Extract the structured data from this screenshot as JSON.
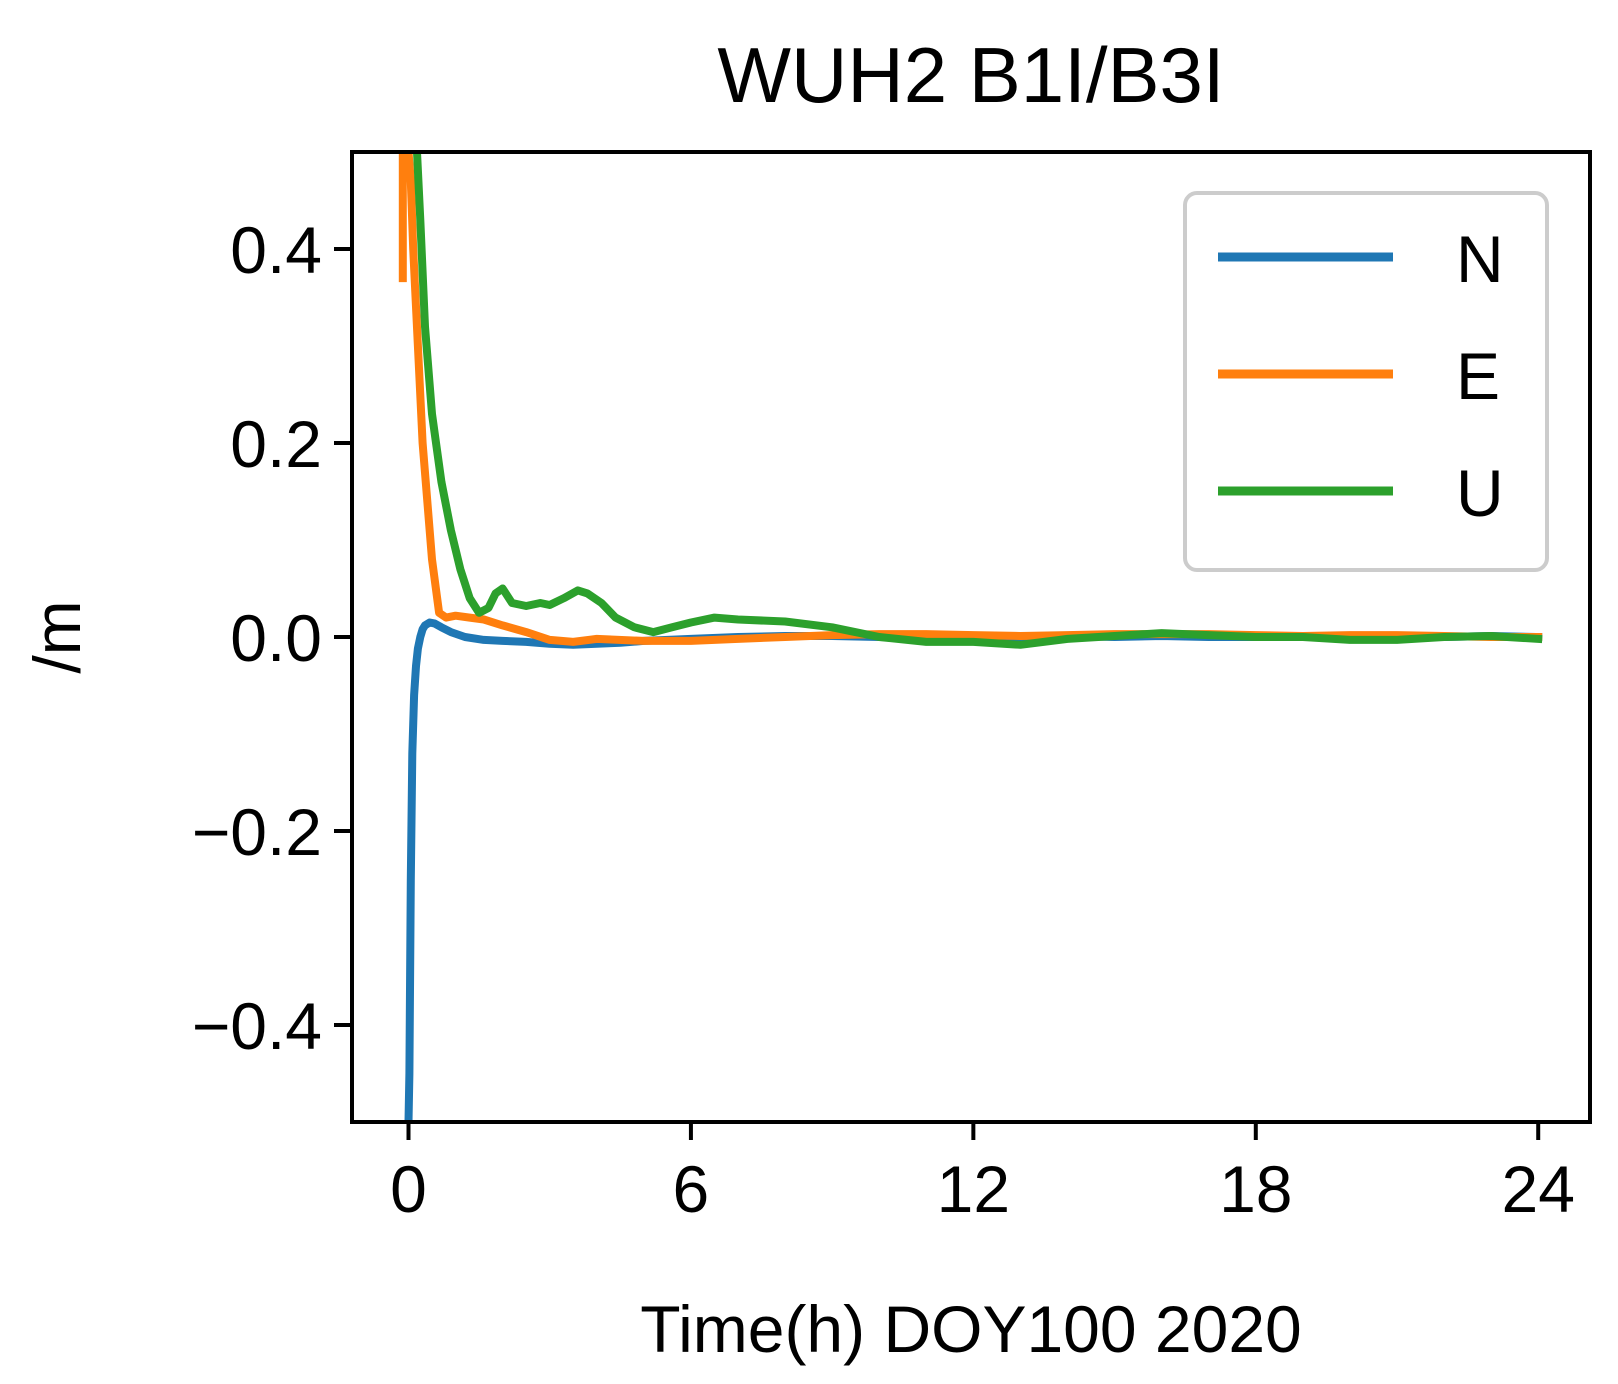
{
  "chart_data": {
    "type": "line",
    "title": "WUH2 B1I/B3I",
    "xlabel": "Time(h) DOY100 2020",
    "ylabel": "/m",
    "xlim": [
      -1.2,
      25.1
    ],
    "ylim": [
      -0.5,
      0.5
    ],
    "xticks": [
      0,
      6,
      12,
      18,
      24
    ],
    "xtick_labels": [
      "0",
      "6",
      "12",
      "18",
      "24"
    ],
    "yticks": [
      -0.4,
      -0.2,
      0.0,
      0.2,
      0.4
    ],
    "ytick_labels": [
      "−0.4",
      "−0.2",
      "0.0",
      "0.2",
      "0.4"
    ],
    "grid": false,
    "legend_position": "top-right",
    "series": [
      {
        "name": "N",
        "color": "#1f77b4",
        "x": [
          0.0,
          0.02,
          0.05,
          0.08,
          0.12,
          0.16,
          0.2,
          0.25,
          0.3,
          0.35,
          0.45,
          0.55,
          0.7,
          0.9,
          1.2,
          1.6,
          2.0,
          2.5,
          3.0,
          3.5,
          4.0,
          4.5,
          5.0,
          6.0,
          7.0,
          8.0,
          9.0,
          10.0,
          11.0,
          12.0,
          13.0,
          14.0,
          15.0,
          16.0,
          17.0,
          18.0,
          19.0,
          20.0,
          21.0,
          22.0,
          23.0,
          24.0
        ],
        "values": [
          -0.5,
          -0.45,
          -0.25,
          -0.12,
          -0.06,
          -0.03,
          -0.012,
          0.0,
          0.008,
          0.012,
          0.015,
          0.014,
          0.01,
          0.005,
          0.0,
          -0.003,
          -0.004,
          -0.005,
          -0.007,
          -0.008,
          -0.007,
          -0.006,
          -0.004,
          -0.002,
          0.0,
          0.001,
          0.001,
          0.0,
          -0.001,
          -0.001,
          0.0,
          0.001,
          0.0,
          0.001,
          0.0,
          0.0,
          0.001,
          0.0,
          0.0,
          0.0,
          0.001,
          0.0
        ]
      },
      {
        "name": "E",
        "color": "#ff7f0e",
        "x": [
          -0.12,
          -0.12,
          0.0,
          0.05,
          0.1,
          0.2,
          0.3,
          0.5,
          0.65,
          0.8,
          1.0,
          1.3,
          1.6,
          2.0,
          2.5,
          3.0,
          3.5,
          4.0,
          5.0,
          6.0,
          7.0,
          8.0,
          9.0,
          10.0,
          11.0,
          12.0,
          13.0,
          14.0,
          15.0,
          16.0,
          17.0,
          18.0,
          19.0,
          20.0,
          21.0,
          22.0,
          23.0,
          24.0
        ],
        "values": [
          0.37,
          0.5,
          0.5,
          0.47,
          0.4,
          0.3,
          0.2,
          0.08,
          0.025,
          0.02,
          0.022,
          0.02,
          0.018,
          0.012,
          0.005,
          -0.003,
          -0.005,
          -0.002,
          -0.004,
          -0.004,
          -0.002,
          0.0,
          0.002,
          0.003,
          0.003,
          0.002,
          0.001,
          0.002,
          0.003,
          0.003,
          0.003,
          0.002,
          0.001,
          0.002,
          0.002,
          0.001,
          0.0,
          0.0
        ]
      },
      {
        "name": "U",
        "color": "#2ca02c",
        "x": [
          0.18,
          0.25,
          0.35,
          0.5,
          0.7,
          0.9,
          1.1,
          1.3,
          1.5,
          1.7,
          1.85,
          2.0,
          2.2,
          2.5,
          2.8,
          3.0,
          3.3,
          3.6,
          3.8,
          4.1,
          4.4,
          4.8,
          5.2,
          5.6,
          6.0,
          6.5,
          7.0,
          8.0,
          9.0,
          10.0,
          11.0,
          12.0,
          13.0,
          14.0,
          15.0,
          16.0,
          17.0,
          18.0,
          19.0,
          20.0,
          21.0,
          22.0,
          23.0,
          24.0
        ],
        "values": [
          0.5,
          0.43,
          0.32,
          0.23,
          0.16,
          0.11,
          0.07,
          0.04,
          0.025,
          0.03,
          0.045,
          0.05,
          0.035,
          0.032,
          0.035,
          0.033,
          0.04,
          0.048,
          0.045,
          0.035,
          0.02,
          0.01,
          0.005,
          0.01,
          0.015,
          0.02,
          0.018,
          0.016,
          0.01,
          0.0,
          -0.005,
          -0.005,
          -0.008,
          -0.002,
          0.001,
          0.004,
          0.002,
          0.0,
          0.0,
          -0.003,
          -0.003,
          0.0,
          0.001,
          -0.002
        ]
      }
    ]
  }
}
